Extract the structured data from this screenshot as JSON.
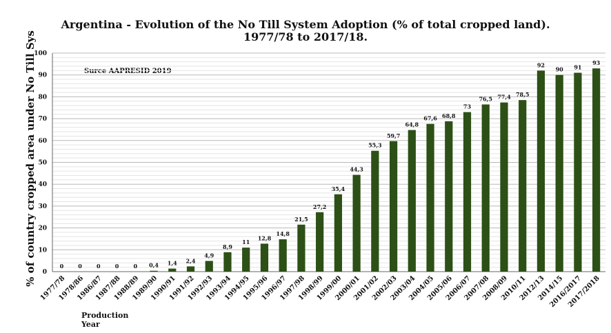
{
  "chart_data": {
    "type": "bar",
    "title": "Argentina - Evolution of the No Till System Adoption (% of total cropped land).",
    "subtitle": "1977/78 to 2017/18.",
    "xlabel": "Production Year",
    "xlabel_lines": [
      "Production",
      "Year"
    ],
    "ylabel": "% of country cropped area under No Till Sys",
    "annotation": "Surce AAPRESID 2019",
    "ylim": [
      0,
      100
    ],
    "yticks": [
      0,
      10,
      20,
      30,
      40,
      50,
      60,
      70,
      80,
      90,
      100
    ],
    "grid": true,
    "bar_color": "#2d5016",
    "categories": [
      "1977/78",
      "1978/86",
      "1986/87",
      "1987/88",
      "1988/89",
      "1989/90",
      "1990/91",
      "1991/92",
      "1992/93",
      "1993/94",
      "1994/95",
      "1995/96",
      "1996/97",
      "1997/98",
      "1998/99",
      "1999/00",
      "2000/01",
      "2001/02",
      "2002/03",
      "2003/04",
      "2004/05",
      "2005/06",
      "2006/07",
      "2007/08",
      "2008/09",
      "2010/11",
      "2012/13",
      "2014/15",
      "2016/2017",
      "2017/2018"
    ],
    "values": [
      0,
      0,
      0,
      0,
      0,
      0.4,
      1.4,
      2.4,
      4.9,
      8.9,
      11,
      12.8,
      14.8,
      21.5,
      27.2,
      35.4,
      44.3,
      55.3,
      59.7,
      64.8,
      67.6,
      68.8,
      73,
      76.5,
      77.4,
      78.5,
      92,
      90,
      91,
      93
    ],
    "data_labels": [
      "0",
      "0",
      "0",
      "0",
      "0",
      "0,4",
      "1,4",
      "2,4",
      "4,9",
      "8,9",
      "11",
      "12,8",
      "14,8",
      "21,5",
      "27,2",
      "35,4",
      "44,3",
      "55,3",
      "59,7",
      "64,8",
      "67,6",
      "68,8",
      "73",
      "76,5",
      "77,4",
      "78,5",
      "92",
      "90",
      "91",
      "93"
    ]
  }
}
